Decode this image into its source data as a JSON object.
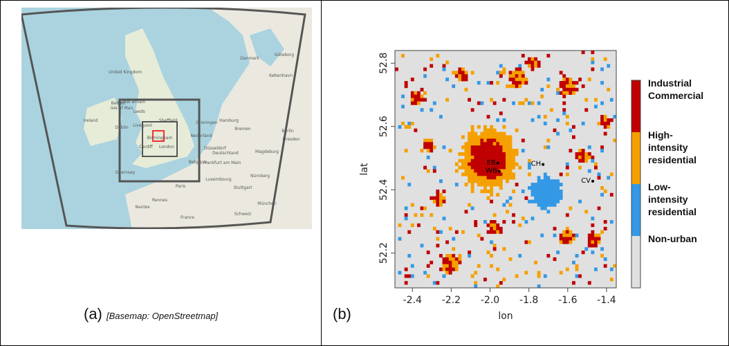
{
  "panel_a": {
    "label": "(a)",
    "credit": "[Basemap: OpenStreetmap]",
    "places": [
      "United Kingdom",
      "Great Britain",
      "Isle of Man",
      "Belfast",
      "Ireland",
      "Dublin",
      "Leeds",
      "Liverpool",
      "Sheffield",
      "Birmingham",
      "Cardiff",
      "London",
      "Groningen",
      "Hamburg",
      "Nederland",
      "Bremen",
      "Danmark",
      "Göteborg",
      "København",
      "Düsseldorf",
      "Deutschland",
      "Magdeburg",
      "Belgique",
      "Frankfurt am Main",
      "Luxembourg",
      "Nürnberg",
      "Paris",
      "Stuttgart",
      "Rennes",
      "Nantes",
      "München",
      "Schweiz",
      "France",
      "Guernsey",
      "Dresden",
      "Berlin"
    ]
  },
  "chart_data": {
    "type": "raster-map",
    "panel_label": "(b)",
    "x_label": "lon",
    "y_label": "lat",
    "xlim": [
      -2.49,
      -1.35
    ],
    "xticks": [
      -2.4,
      -2.2,
      {
        "value": -2,
        "label": "-2.0"
      },
      -1.8,
      -1.6,
      -1.4
    ],
    "ylim": [
      52.09,
      52.84
    ],
    "yticks": [
      52.2,
      52.4,
      52.6,
      52.8
    ],
    "legend": [
      {
        "name": "Industrial Commercial",
        "color": "#c00000"
      },
      {
        "name": "High-intensity residential",
        "color": "#f5a000"
      },
      {
        "name": "Low-intensity residential",
        "color": "#3399e6"
      },
      {
        "name": "Non-urban",
        "color": "#e0e0e0"
      }
    ],
    "sites": [
      {
        "name": "EB",
        "lon": -1.96,
        "lat": 52.484
      },
      {
        "name": "WB",
        "lon": -1.952,
        "lat": 52.458
      },
      {
        "name": "CH",
        "lon": -1.727,
        "lat": 52.48
      },
      {
        "name": "CV",
        "lon": -1.471,
        "lat": 52.427
      }
    ]
  }
}
